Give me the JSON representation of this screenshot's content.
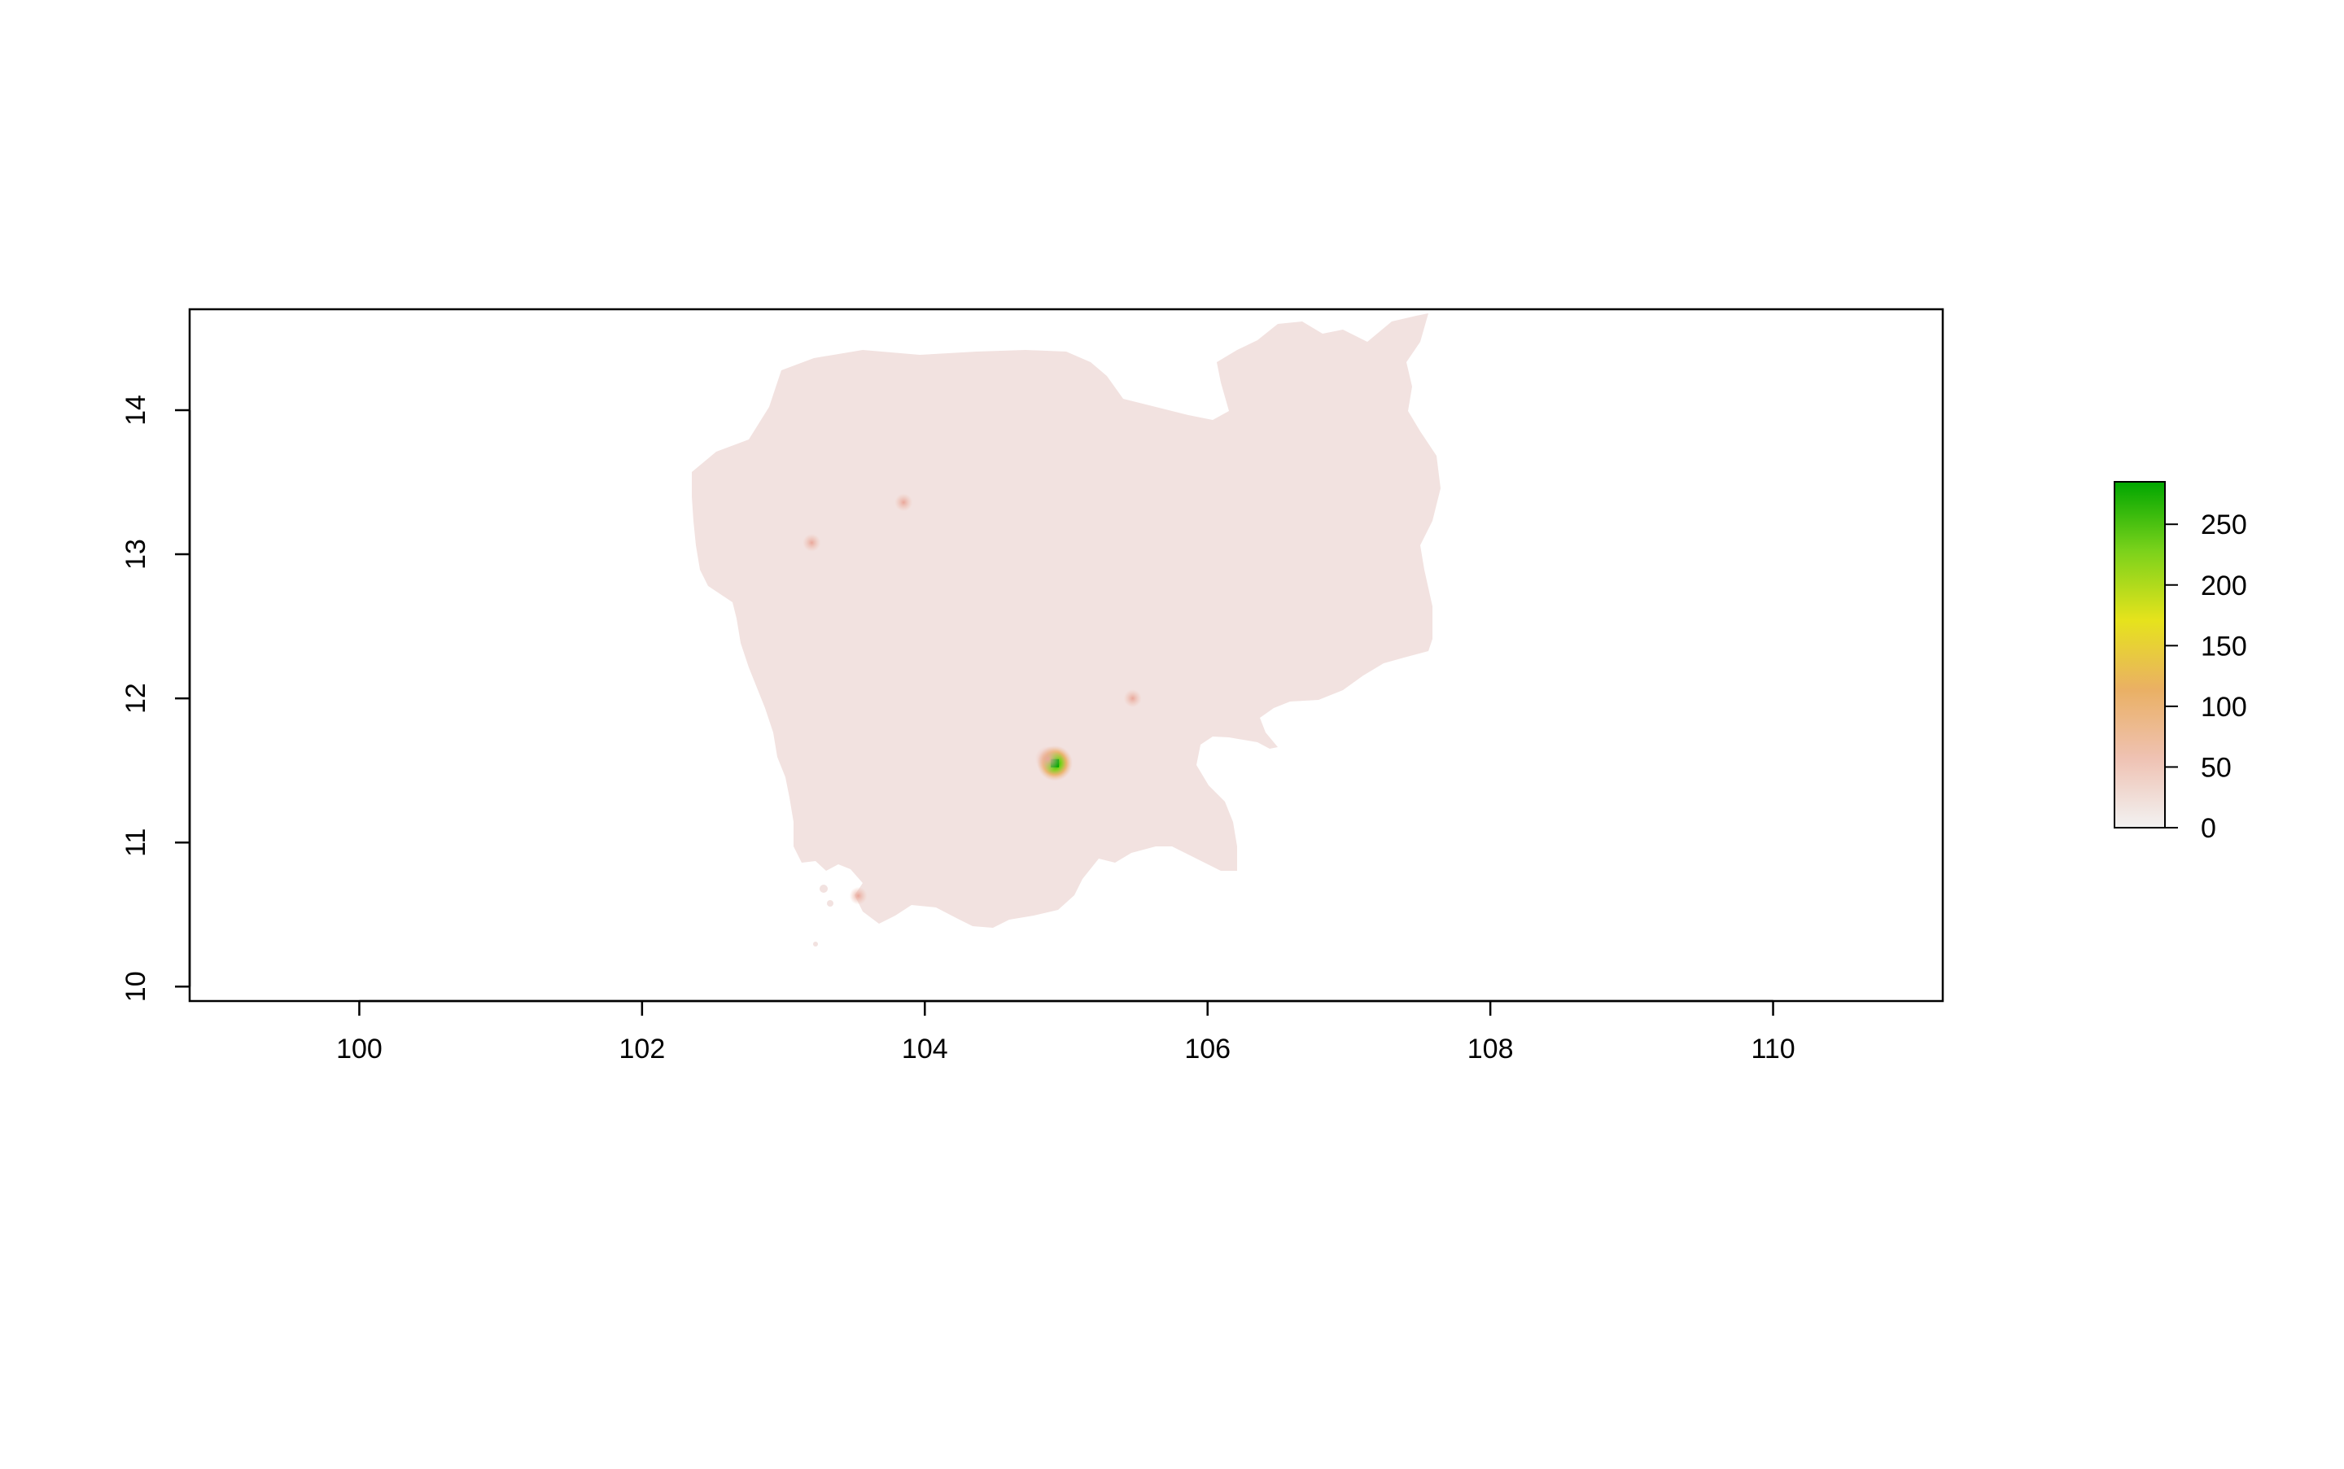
{
  "map": {
    "type": "raster",
    "x_axis": {
      "range": [
        98.8,
        111.2
      ],
      "ticks": [
        "100",
        "102",
        "104",
        "106",
        "108",
        "110"
      ]
    },
    "y_axis": {
      "range": [
        9.9,
        14.7
      ],
      "ticks": [
        "10",
        "11",
        "12",
        "13",
        "14"
      ]
    },
    "legend": {
      "range": [
        0,
        285
      ],
      "ticks": [
        "0",
        "50",
        "100",
        "150",
        "200",
        "250"
      ],
      "colors": [
        "#f2f2f2",
        "#efc2b3",
        "#eab064",
        "#e6e31c",
        "#7bd21b",
        "#00a600"
      ],
      "placement": "right"
    },
    "land_color": "#f2e2e0",
    "hotspots": [
      {
        "lon": 104.92,
        "lat": 11.55,
        "value": 280
      },
      {
        "lon": 104.87,
        "lat": 11.58,
        "value": 90
      },
      {
        "lon": 103.2,
        "lat": 13.08,
        "value": 25
      },
      {
        "lon": 103.85,
        "lat": 13.36,
        "value": 15
      },
      {
        "lon": 103.53,
        "lat": 10.63,
        "value": 40
      },
      {
        "lon": 105.47,
        "lat": 12.0,
        "value": 20
      }
    ]
  }
}
